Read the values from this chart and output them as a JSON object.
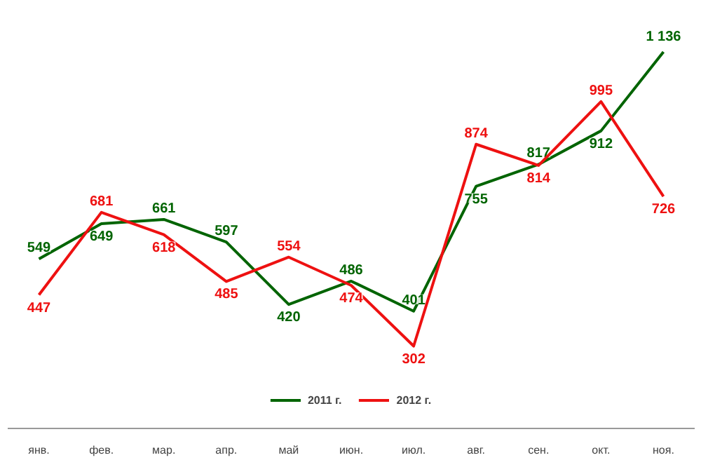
{
  "chart_data": {
    "type": "line",
    "categories": [
      "янв.",
      "фев.",
      "мар.",
      "апр.",
      "май",
      "июн.",
      "июл.",
      "авг.",
      "сен.",
      "окт.",
      "ноя."
    ],
    "series": [
      {
        "name": "2011 г.",
        "color": "#006400",
        "values": [
          549,
          649,
          661,
          597,
          420,
          486,
          401,
          755,
          817,
          912,
          1136
        ],
        "value_labels": [
          "549",
          "649",
          "661",
          "597",
          "420",
          "486",
          "401",
          "755",
          "817",
          "912",
          "1 136"
        ]
      },
      {
        "name": "2012 г.",
        "color": "#ee1111",
        "values": [
          447,
          681,
          618,
          485,
          554,
          474,
          302,
          874,
          814,
          995,
          726
        ],
        "value_labels": [
          "447",
          "681",
          "618",
          "485",
          "554",
          "474",
          "302",
          "874",
          "814",
          "995",
          "726"
        ]
      }
    ],
    "legend": "bottom",
    "grid": false,
    "marker": "none",
    "line_style": "solid"
  }
}
